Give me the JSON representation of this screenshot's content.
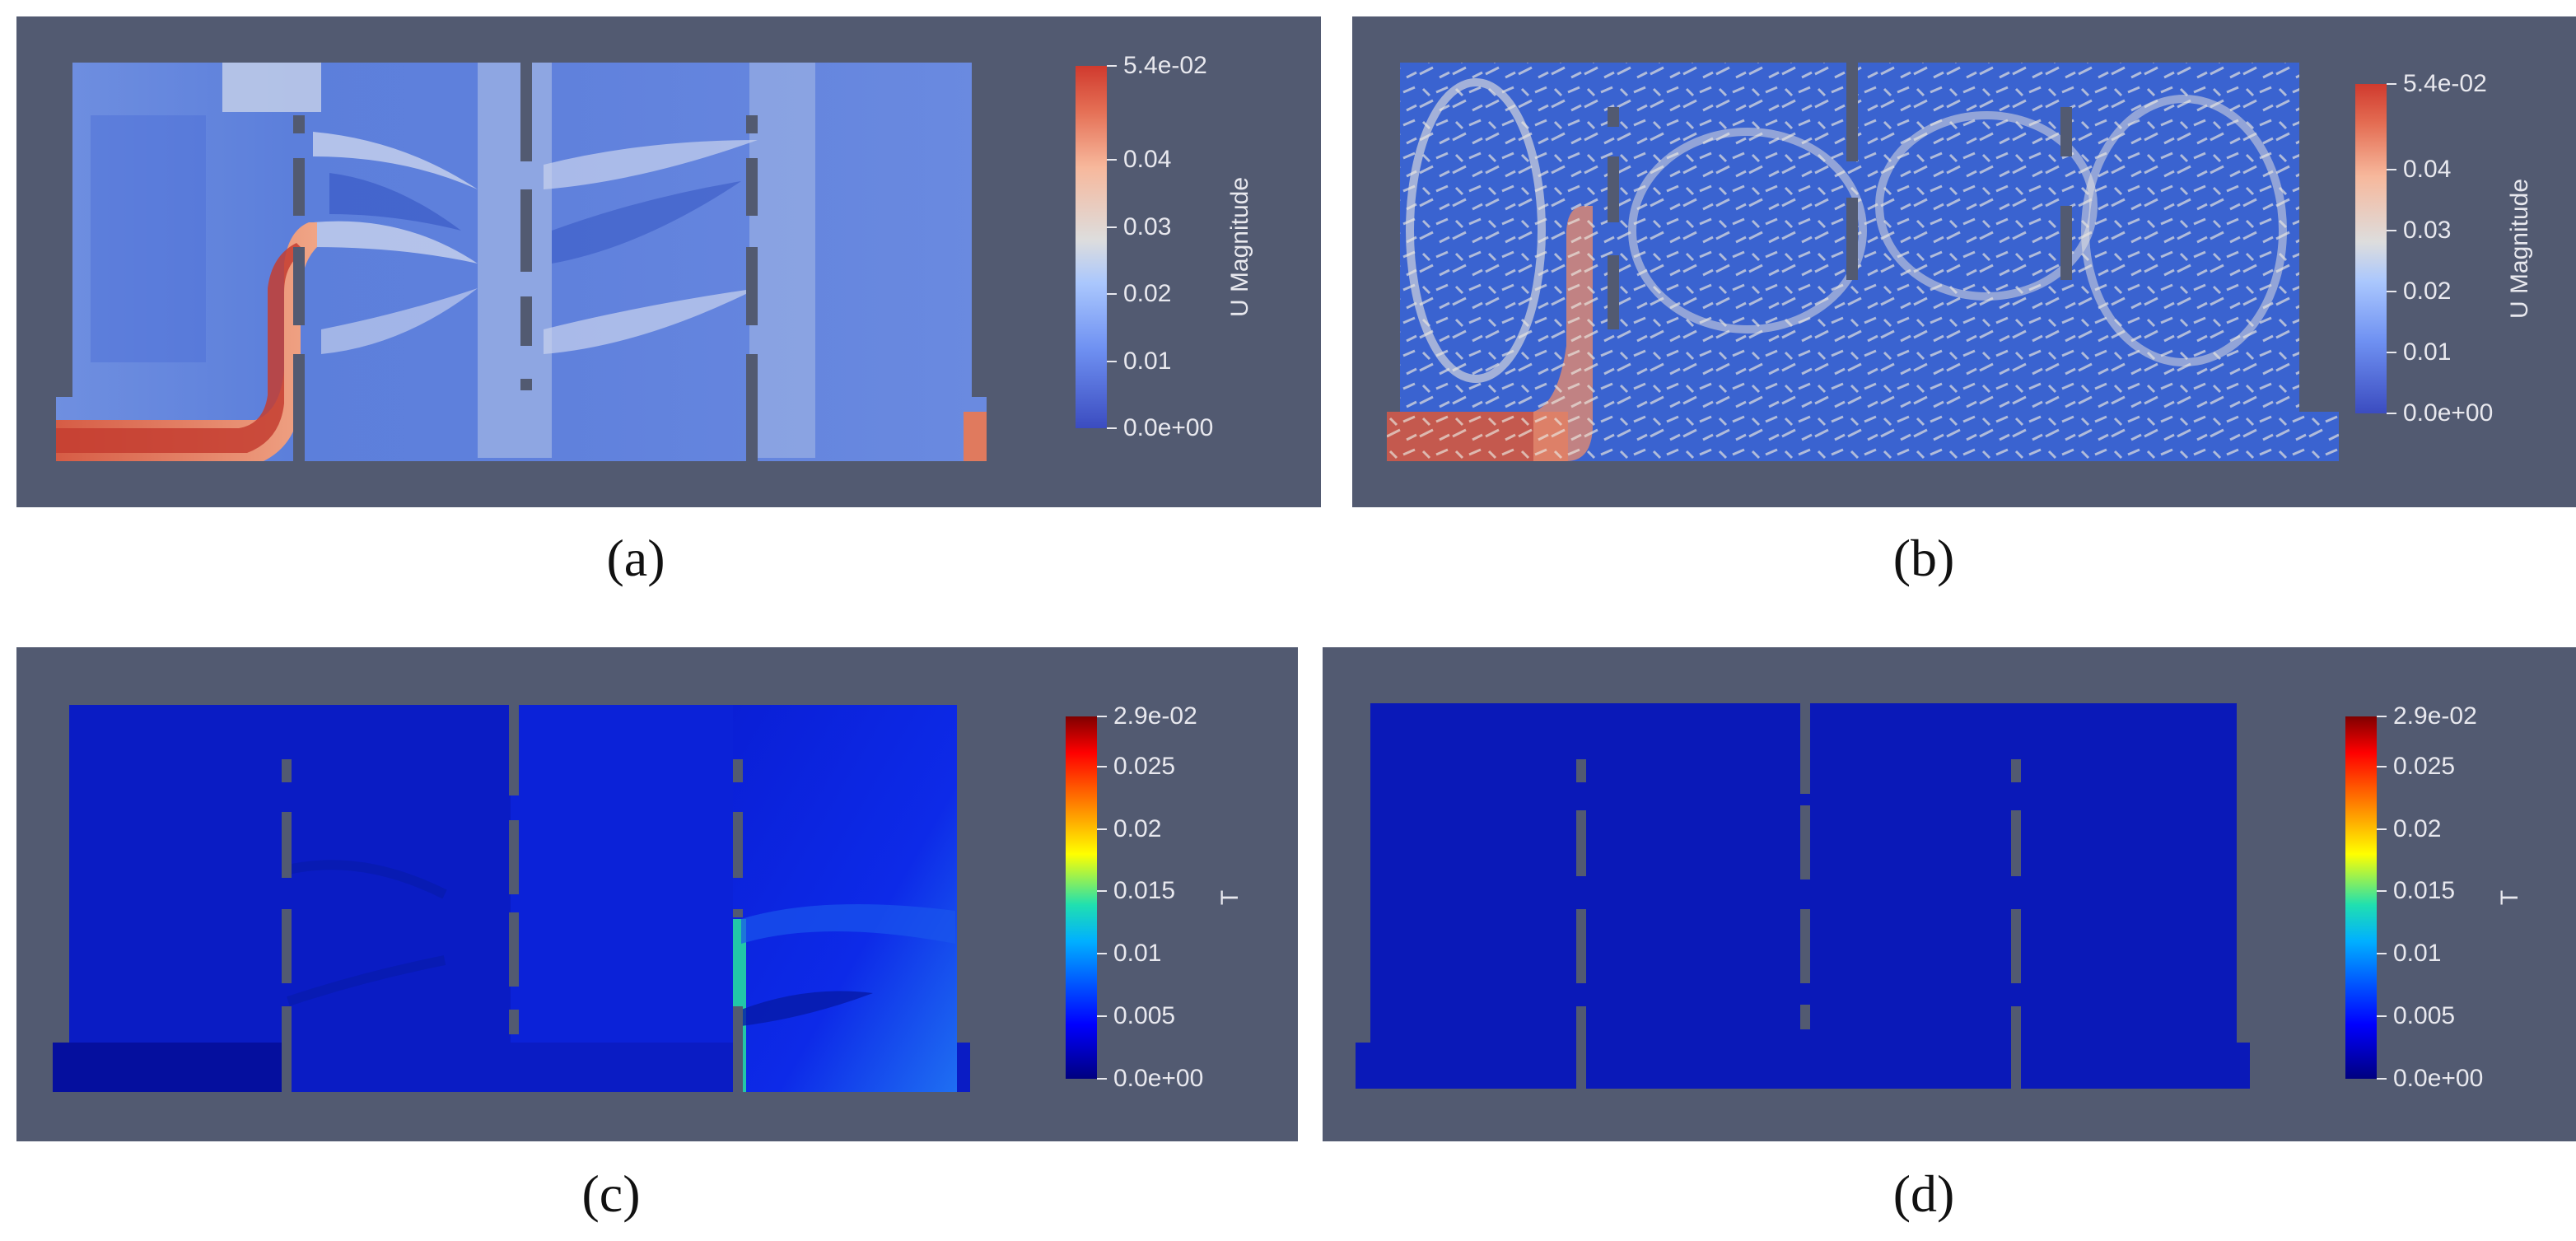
{
  "panels": [
    {
      "caption": "(a)",
      "colorbar": {
        "title": "U Magnitude",
        "max_label": "5.4e-02",
        "min_label": "0.0e+00",
        "ticks": [
          "0.04",
          "0.03",
          "0.02",
          "0.01"
        ],
        "colormap": "cool-to-warm"
      }
    },
    {
      "caption": "(b)",
      "colorbar": {
        "title": "U Magnitude",
        "max_label": "5.4e-02",
        "min_label": "0.0e+00",
        "ticks": [
          "0.04",
          "0.03",
          "0.02",
          "0.01"
        ],
        "colormap": "cool-to-warm"
      }
    },
    {
      "caption": "(c)",
      "colorbar": {
        "title": "T",
        "max_label": "2.9e-02",
        "min_label": "0.0e+00",
        "ticks": [
          "0.025",
          "0.02",
          "0.015",
          "0.01",
          "0.005"
        ],
        "colormap": "jet"
      }
    },
    {
      "caption": "(d)",
      "colorbar": {
        "title": "T",
        "max_label": "2.9e-02",
        "min_label": "0.0e+00",
        "ticks": [
          "0.025",
          "0.02",
          "0.015",
          "0.01",
          "0.005"
        ],
        "colormap": "jet"
      }
    }
  ],
  "colors": {
    "background": "#525a71",
    "cool_low": "#3b4cc0",
    "cool_high": "#d03a2e",
    "jet_low": "#00007f",
    "jet_high": "#7f0000"
  }
}
